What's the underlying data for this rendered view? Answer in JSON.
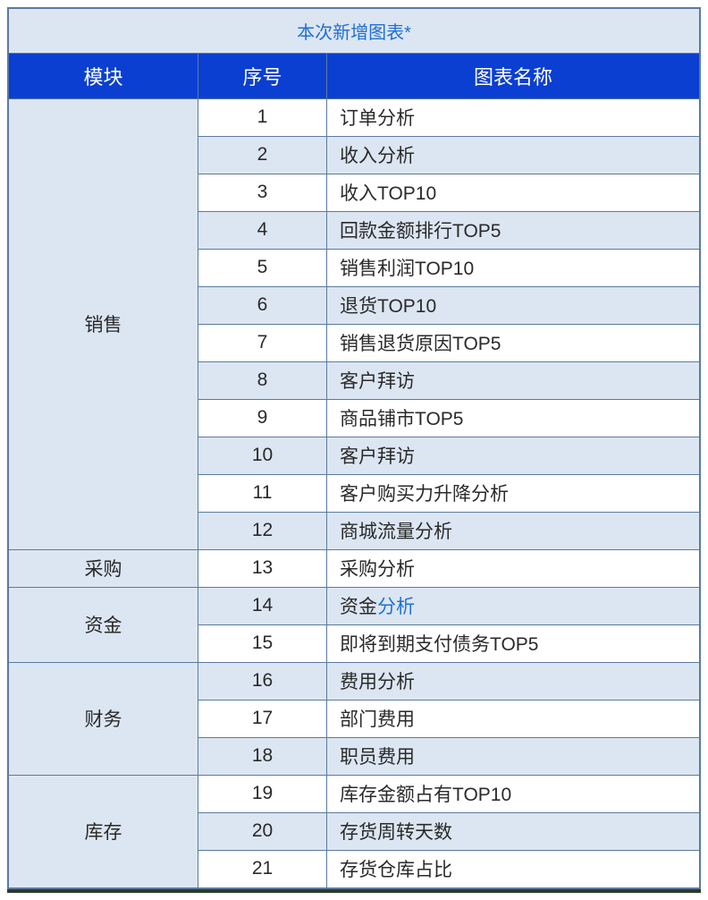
{
  "caption": "本次新增图表*",
  "headers": {
    "module": "模块",
    "seq": "序号",
    "name": "图表名称"
  },
  "colors": {
    "caption_bg": "#dce6f2",
    "caption_text": "#1f6fd4",
    "header_bg": "#0b3fd1",
    "header_text": "#ffffff",
    "row_odd_bg": "#ffffff",
    "row_even_bg": "#dce6f2",
    "border": "#5a7aa0",
    "text": "#2a2a2a",
    "link": "#1f6fd4"
  },
  "modules": [
    {
      "name": "销售",
      "rows": [
        {
          "seq": "1",
          "name": "订单分析",
          "stripe": "odd"
        },
        {
          "seq": "2",
          "name": "收入分析",
          "stripe": "even"
        },
        {
          "seq": "3",
          "name": "收入TOP10",
          "stripe": "odd"
        },
        {
          "seq": "4",
          "name": "回款金额排行TOP5",
          "stripe": "even"
        },
        {
          "seq": "5",
          "name": "销售利润TOP10",
          "stripe": "odd"
        },
        {
          "seq": "6",
          "name": "退货TOP10",
          "stripe": "even"
        },
        {
          "seq": "7",
          "name": "销售退货原因TOP5",
          "stripe": "odd"
        },
        {
          "seq": "8",
          "name": "客户拜访",
          "stripe": "even"
        },
        {
          "seq": "9",
          "name": "商品铺市TOP5",
          "stripe": "odd"
        },
        {
          "seq": "10",
          "name": "客户拜访",
          "stripe": "even"
        },
        {
          "seq": "11",
          "name": "客户购买力升降分析",
          "stripe": "odd"
        },
        {
          "seq": "12",
          "name": "商城流量分析",
          "stripe": "even"
        }
      ]
    },
    {
      "name": "采购",
      "rows": [
        {
          "seq": "13",
          "name": "采购分析",
          "stripe": "odd"
        }
      ]
    },
    {
      "name": "资金",
      "rows": [
        {
          "seq": "14",
          "name_parts": [
            {
              "text": "资金",
              "link": false
            },
            {
              "text": "分析",
              "link": true
            }
          ],
          "stripe": "even"
        },
        {
          "seq": "15",
          "name": "即将到期支付债务TOP5",
          "stripe": "odd"
        }
      ]
    },
    {
      "name": "财务",
      "rows": [
        {
          "seq": "16",
          "name": "费用分析",
          "stripe": "even"
        },
        {
          "seq": "17",
          "name": "部门费用",
          "stripe": "odd"
        },
        {
          "seq": "18",
          "name": "职员费用",
          "stripe": "even"
        }
      ]
    },
    {
      "name": "库存",
      "rows": [
        {
          "seq": "19",
          "name": "库存金额占有TOP10",
          "stripe": "odd"
        },
        {
          "seq": "20",
          "name": "存货周转天数",
          "stripe": "even"
        },
        {
          "seq": "21",
          "name": "存货仓库占比",
          "stripe": "odd"
        }
      ]
    }
  ]
}
